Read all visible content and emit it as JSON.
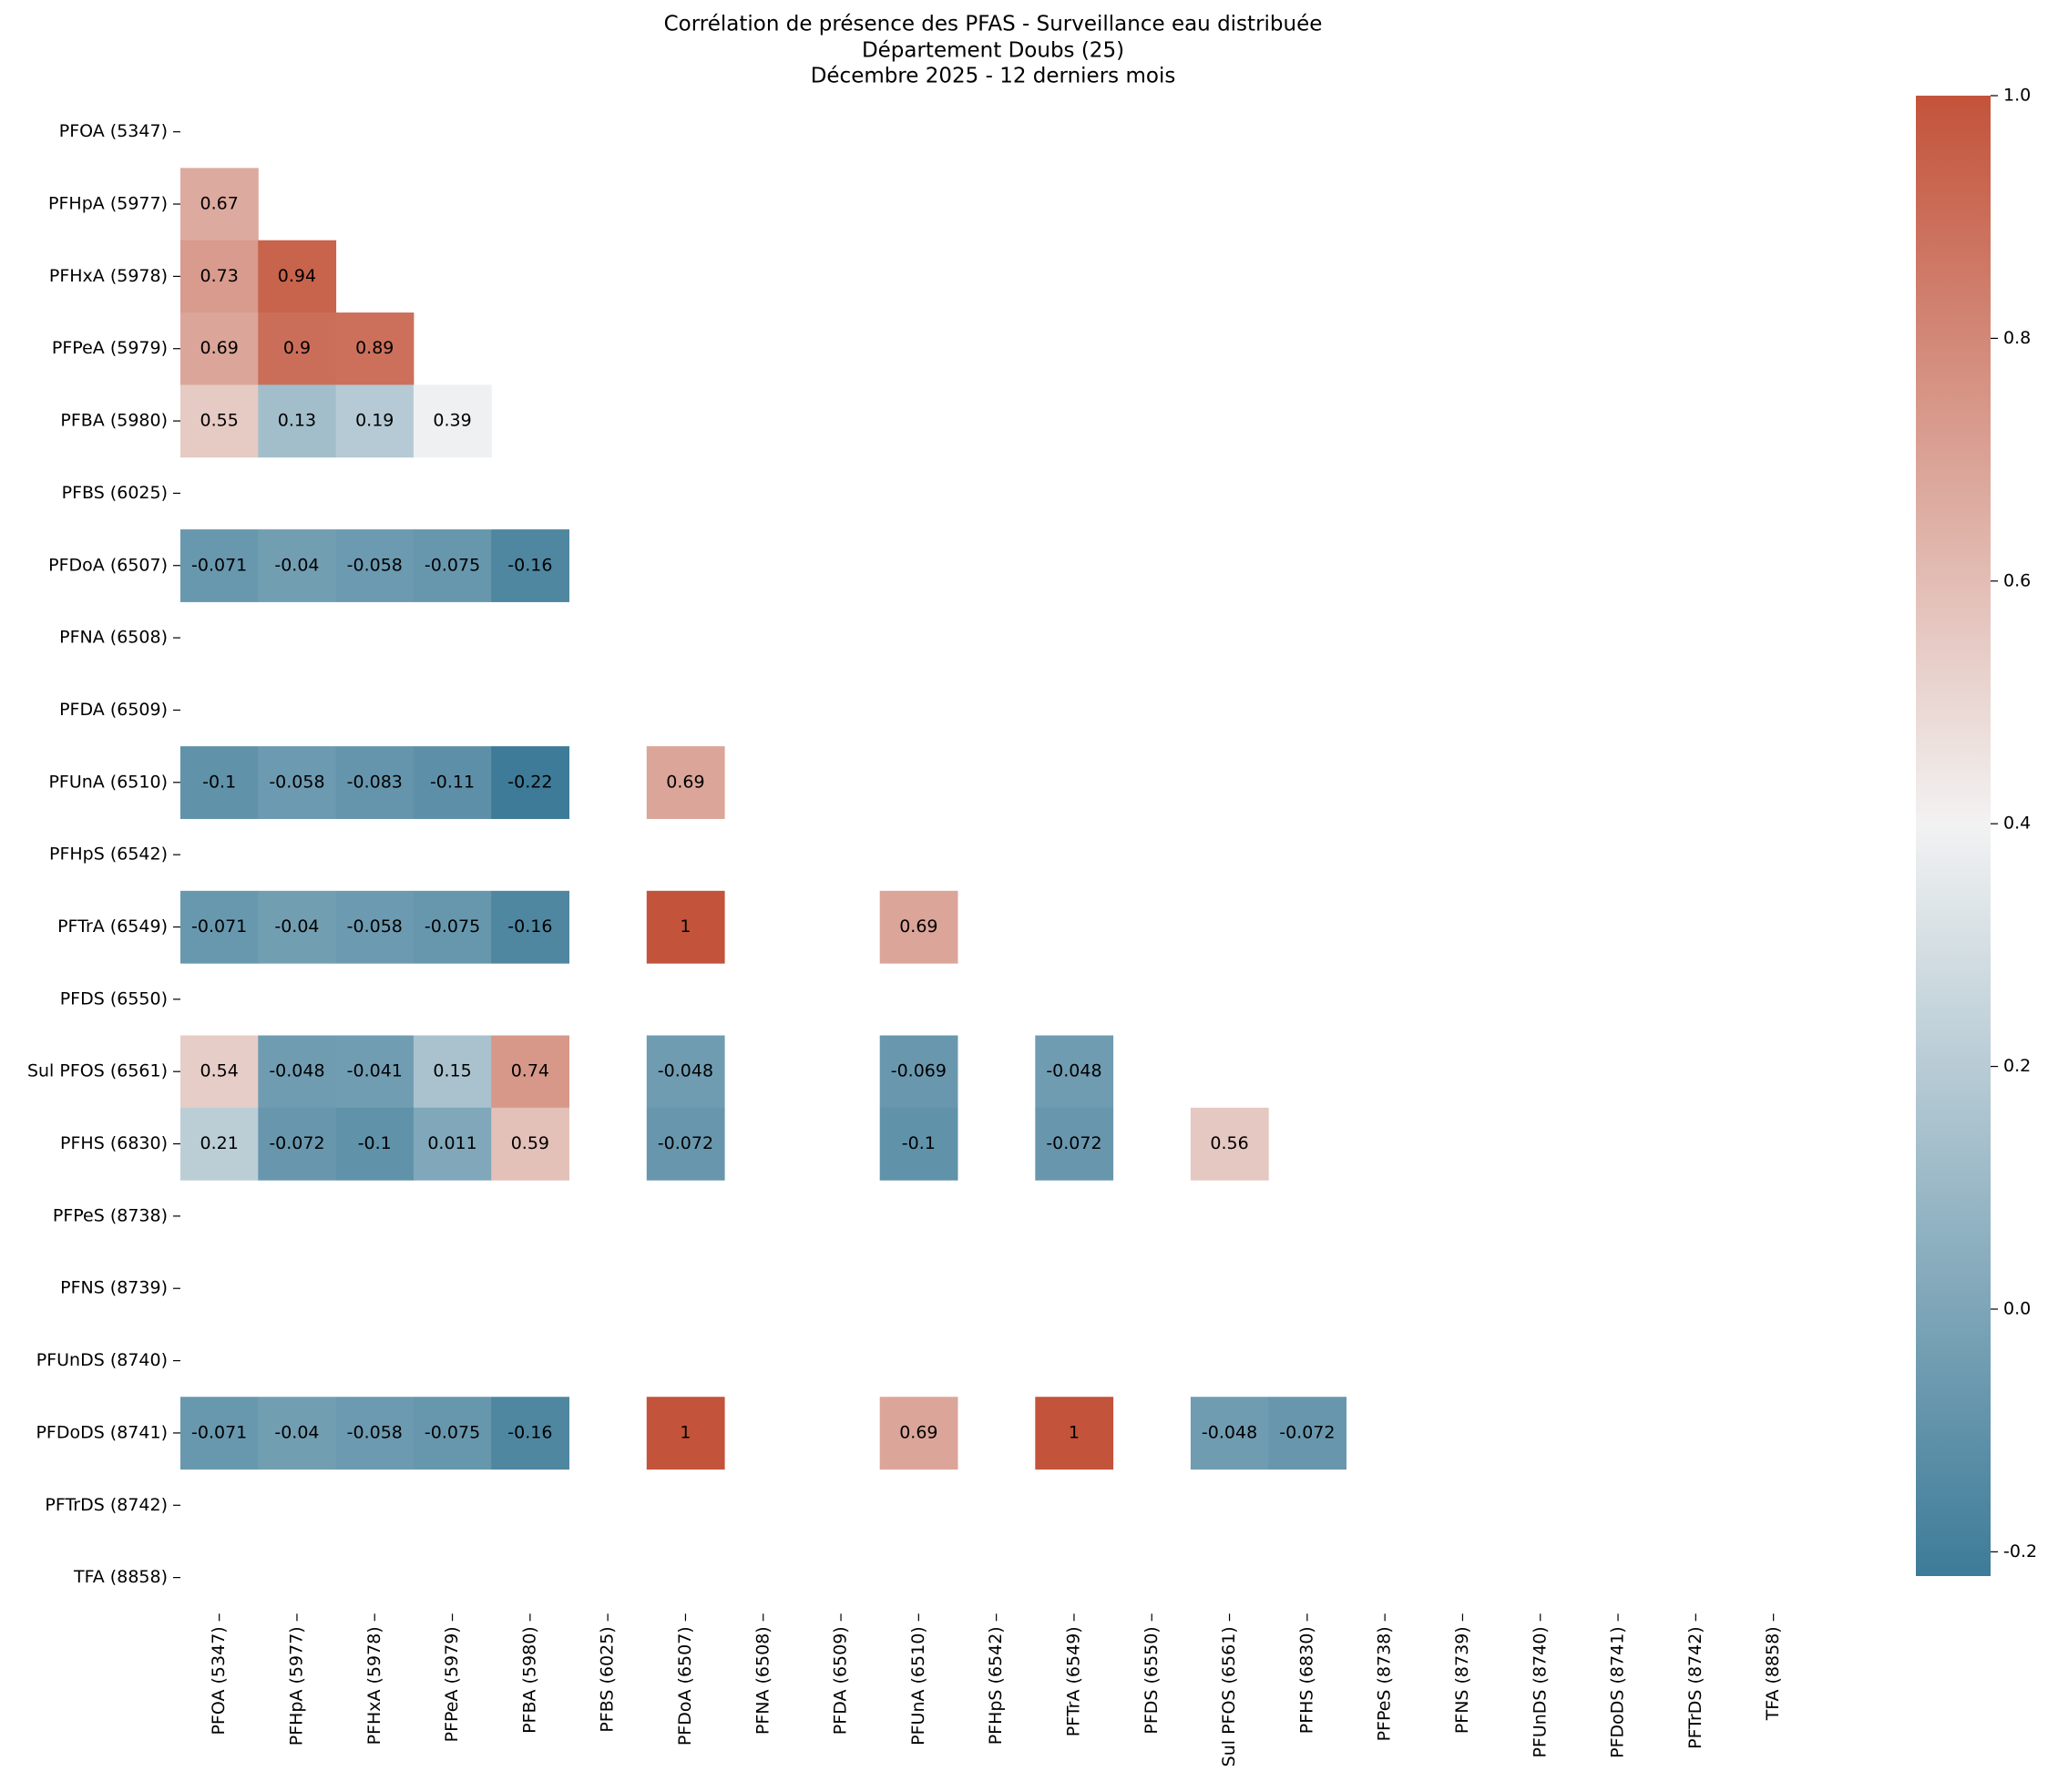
{
  "chart_data": {
    "type": "heatmap",
    "title": [
      "Corrélation de présence des PFAS - Surveillance eau distribuée",
      "Département Doubs (25)",
      "Décembre 2025 - 12 derniers mois"
    ],
    "categories": [
      "PFOA (5347)",
      "PFHpA (5977)",
      "PFHxA (5978)",
      "PFPeA (5979)",
      "PFBA (5980)",
      "PFBS (6025)",
      "PFDoA (6507)",
      "PFNA (6508)",
      "PFDA (6509)",
      "PFUnA (6510)",
      "PFHpS (6542)",
      "PFTrA (6549)",
      "PFDS (6550)",
      "Sul PFOS (6561)",
      "PFHS (6830)",
      "PFPeS (8738)",
      "PFNS (8739)",
      "PFUnDS (8740)",
      "PFDoDS (8741)",
      "PFTrDS (8742)",
      "TFA (8858)"
    ],
    "values": [
      [
        null,
        null,
        null,
        null,
        null,
        null,
        null,
        null,
        null,
        null,
        null,
        null,
        null,
        null,
        null,
        null,
        null,
        null,
        null,
        null,
        null
      ],
      [
        0.67,
        null,
        null,
        null,
        null,
        null,
        null,
        null,
        null,
        null,
        null,
        null,
        null,
        null,
        null,
        null,
        null,
        null,
        null,
        null,
        null
      ],
      [
        0.73,
        0.94,
        null,
        null,
        null,
        null,
        null,
        null,
        null,
        null,
        null,
        null,
        null,
        null,
        null,
        null,
        null,
        null,
        null,
        null,
        null
      ],
      [
        0.69,
        0.9,
        0.89,
        null,
        null,
        null,
        null,
        null,
        null,
        null,
        null,
        null,
        null,
        null,
        null,
        null,
        null,
        null,
        null,
        null,
        null
      ],
      [
        0.55,
        0.13,
        0.19,
        0.39,
        null,
        null,
        null,
        null,
        null,
        null,
        null,
        null,
        null,
        null,
        null,
        null,
        null,
        null,
        null,
        null,
        null
      ],
      [
        null,
        null,
        null,
        null,
        null,
        null,
        null,
        null,
        null,
        null,
        null,
        null,
        null,
        null,
        null,
        null,
        null,
        null,
        null,
        null,
        null
      ],
      [
        -0.071,
        -0.04,
        -0.058,
        -0.075,
        -0.16,
        null,
        null,
        null,
        null,
        null,
        null,
        null,
        null,
        null,
        null,
        null,
        null,
        null,
        null,
        null,
        null
      ],
      [
        null,
        null,
        null,
        null,
        null,
        null,
        null,
        null,
        null,
        null,
        null,
        null,
        null,
        null,
        null,
        null,
        null,
        null,
        null,
        null,
        null
      ],
      [
        null,
        null,
        null,
        null,
        null,
        null,
        null,
        null,
        null,
        null,
        null,
        null,
        null,
        null,
        null,
        null,
        null,
        null,
        null,
        null,
        null
      ],
      [
        -0.1,
        -0.058,
        -0.083,
        -0.11,
        -0.22,
        null,
        0.69,
        null,
        null,
        null,
        null,
        null,
        null,
        null,
        null,
        null,
        null,
        null,
        null,
        null,
        null
      ],
      [
        null,
        null,
        null,
        null,
        null,
        null,
        null,
        null,
        null,
        null,
        null,
        null,
        null,
        null,
        null,
        null,
        null,
        null,
        null,
        null,
        null
      ],
      [
        -0.071,
        -0.04,
        -0.058,
        -0.075,
        -0.16,
        null,
        1,
        null,
        null,
        0.69,
        null,
        null,
        null,
        null,
        null,
        null,
        null,
        null,
        null,
        null,
        null
      ],
      [
        null,
        null,
        null,
        null,
        null,
        null,
        null,
        null,
        null,
        null,
        null,
        null,
        null,
        null,
        null,
        null,
        null,
        null,
        null,
        null,
        null
      ],
      [
        0.54,
        -0.048,
        -0.041,
        0.15,
        0.74,
        null,
        -0.048,
        null,
        null,
        -0.069,
        null,
        -0.048,
        null,
        null,
        null,
        null,
        null,
        null,
        null,
        null,
        null
      ],
      [
        0.21,
        -0.072,
        -0.1,
        0.011,
        0.59,
        null,
        -0.072,
        null,
        null,
        -0.1,
        null,
        -0.072,
        null,
        0.56,
        null,
        null,
        null,
        null,
        null,
        null,
        null
      ],
      [
        null,
        null,
        null,
        null,
        null,
        null,
        null,
        null,
        null,
        null,
        null,
        null,
        null,
        null,
        null,
        null,
        null,
        null,
        null,
        null,
        null
      ],
      [
        null,
        null,
        null,
        null,
        null,
        null,
        null,
        null,
        null,
        null,
        null,
        null,
        null,
        null,
        null,
        null,
        null,
        null,
        null,
        null,
        null
      ],
      [
        null,
        null,
        null,
        null,
        null,
        null,
        null,
        null,
        null,
        null,
        null,
        null,
        null,
        null,
        null,
        null,
        null,
        null,
        null,
        null,
        null
      ],
      [
        -0.071,
        -0.04,
        -0.058,
        -0.075,
        -0.16,
        null,
        1,
        null,
        null,
        0.69,
        null,
        1,
        null,
        -0.048,
        -0.072,
        null,
        null,
        null,
        null,
        null,
        null
      ],
      [
        null,
        null,
        null,
        null,
        null,
        null,
        null,
        null,
        null,
        null,
        null,
        null,
        null,
        null,
        null,
        null,
        null,
        null,
        null,
        null,
        null
      ],
      [
        null,
        null,
        null,
        null,
        null,
        null,
        null,
        null,
        null,
        null,
        null,
        null,
        null,
        null,
        null,
        null,
        null,
        null,
        null,
        null,
        null
      ]
    ],
    "clim": [
      -0.22,
      1.0
    ],
    "center": 0.4,
    "cticks": [
      -0.2,
      {
        "value": 0,
        "label": "0.0"
      },
      0.2,
      0.4,
      0.6,
      0.8,
      {
        "value": 1,
        "label": "1.0"
      }
    ],
    "colors": [
      "#3d7b98",
      "#f2f2f2",
      "#c3533a"
    ]
  }
}
